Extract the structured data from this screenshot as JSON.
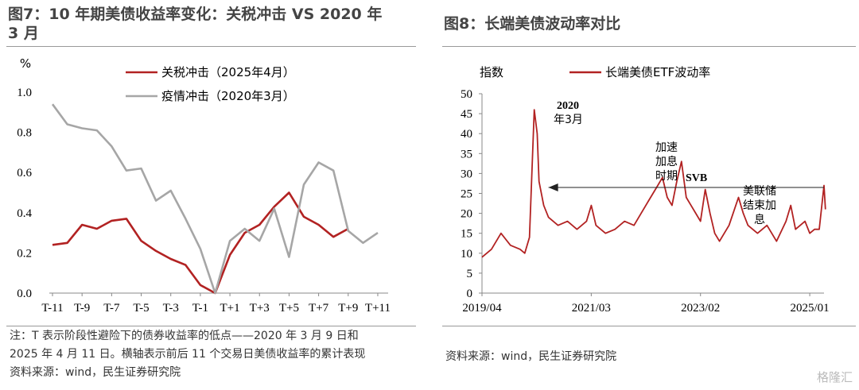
{
  "left": {
    "title_line1": "图7：10 年期美债收益率变化：关税冲击  VS  2020 年",
    "title_line2": "3 月",
    "note_line1": "注：T 表示阶段性避险下的债券收益率的低点——2020  年  3  月  9  日和",
    "note_line2": "2025 年 4 月 11 日。横轴表示前后 11 个交易日美债收益率的累计表现",
    "source": "资料来源：wind，民生证券研究院"
  },
  "right": {
    "title": "图8：长端美债波动率对比",
    "source": "资料来源：wind，民生证券研究院"
  },
  "watermark": "格隆汇",
  "chart_data": [
    {
      "type": "line",
      "ylabel": "%",
      "ylim": [
        0,
        1.0
      ],
      "yticks": [
        "0.0",
        "0.2",
        "0.4",
        "0.6",
        "0.8",
        "1.0"
      ],
      "x": [
        "T-11",
        "T-10",
        "T-9",
        "T-8",
        "T-7",
        "T-6",
        "T-5",
        "T-4",
        "T-3",
        "T-2",
        "T-1",
        "T",
        "T+1",
        "T+2",
        "T+3",
        "T+4",
        "T+5",
        "T+6",
        "T+7",
        "T+8",
        "T+9",
        "T+10",
        "T+11"
      ],
      "xtick_labels": [
        "T-11",
        "T-9",
        "T-7",
        "T-5",
        "T-3",
        "T-1",
        "T+1",
        "T+3",
        "T+5",
        "T+7",
        "T+9",
        "T+11"
      ],
      "series": [
        {
          "name": "关税冲击（2025年4月）",
          "color": "#b22222",
          "values": [
            0.24,
            0.25,
            0.34,
            0.32,
            0.36,
            0.37,
            0.26,
            0.21,
            0.17,
            0.14,
            0.04,
            0.0,
            0.19,
            0.3,
            0.34,
            0.43,
            0.5,
            0.38,
            0.34,
            0.28,
            0.32,
            null,
            null
          ]
        },
        {
          "name": "疫情冲击（2020年3月）",
          "color": "#a6a6a6",
          "values": [
            0.94,
            0.84,
            0.82,
            0.81,
            0.73,
            0.61,
            0.62,
            0.46,
            0.51,
            0.37,
            0.22,
            0.0,
            0.26,
            0.32,
            0.26,
            0.42,
            0.18,
            0.54,
            0.65,
            0.61,
            0.31,
            0.25,
            0.3
          ]
        }
      ]
    },
    {
      "type": "line",
      "ylabel": "指数",
      "ylim": [
        0,
        50
      ],
      "yticks": [
        "0",
        "5",
        "10",
        "15",
        "20",
        "25",
        "30",
        "35",
        "40",
        "45",
        "50"
      ],
      "xlim": [
        "2019/04",
        "2025/04"
      ],
      "xtick_labels": [
        "2019/04",
        "2021/03",
        "2023/02",
        "2025/01"
      ],
      "series": [
        {
          "name": "长端美债ETF波动率",
          "color": "#b22222",
          "points": [
            [
              "2019/04",
              9
            ],
            [
              "2019/06",
              11
            ],
            [
              "2019/08",
              15
            ],
            [
              "2019/10",
              12
            ],
            [
              "2019/12",
              11
            ],
            [
              "2020/01",
              10
            ],
            [
              "2020/02",
              14
            ],
            [
              "2020/03",
              46
            ],
            [
              "2020/03/20",
              40
            ],
            [
              "2020/04",
              28
            ],
            [
              "2020/05",
              22
            ],
            [
              "2020/06",
              19
            ],
            [
              "2020/08",
              17
            ],
            [
              "2020/10",
              18
            ],
            [
              "2020/12",
              16
            ],
            [
              "2021/02",
              18
            ],
            [
              "2021/03",
              22
            ],
            [
              "2021/04",
              17
            ],
            [
              "2021/06",
              15
            ],
            [
              "2021/08",
              16
            ],
            [
              "2021/10",
              18
            ],
            [
              "2021/12",
              17
            ],
            [
              "2022/01",
              19
            ],
            [
              "2022/03",
              23
            ],
            [
              "2022/05",
              27
            ],
            [
              "2022/06",
              29
            ],
            [
              "2022/07",
              24
            ],
            [
              "2022/08",
              22
            ],
            [
              "2022/09",
              28
            ],
            [
              "2022/10",
              33
            ],
            [
              "2022/11",
              24
            ],
            [
              "2022/12",
              22
            ],
            [
              "2023/01",
              20
            ],
            [
              "2023/02",
              18
            ],
            [
              "2023/03",
              26
            ],
            [
              "2023/04",
              20
            ],
            [
              "2023/05",
              15
            ],
            [
              "2023/06",
              13
            ],
            [
              "2023/08",
              17
            ],
            [
              "2023/10",
              24
            ],
            [
              "2023/11",
              20
            ],
            [
              "2023/12",
              17
            ],
            [
              "2024/02",
              15
            ],
            [
              "2024/04",
              17
            ],
            [
              "2024/06",
              13
            ],
            [
              "2024/08",
              18
            ],
            [
              "2024/09",
              22
            ],
            [
              "2024/10",
              16
            ],
            [
              "2024/12",
              18
            ],
            [
              "2025/01",
              15
            ],
            [
              "2025/02",
              16
            ],
            [
              "2025/03",
              16
            ],
            [
              "2025/04",
              27
            ],
            [
              "2025/04/10",
              21
            ]
          ]
        }
      ],
      "annotations": [
        {
          "text_line1": "2020",
          "text_line2": "年3月"
        },
        {
          "text_line1": "加速",
          "text_line2": "加息",
          "text_line3": "时期"
        },
        {
          "text_line1": "SVB"
        },
        {
          "text_line1": "美联储",
          "text_line2": "结束加",
          "text_line3": "息"
        }
      ]
    }
  ]
}
